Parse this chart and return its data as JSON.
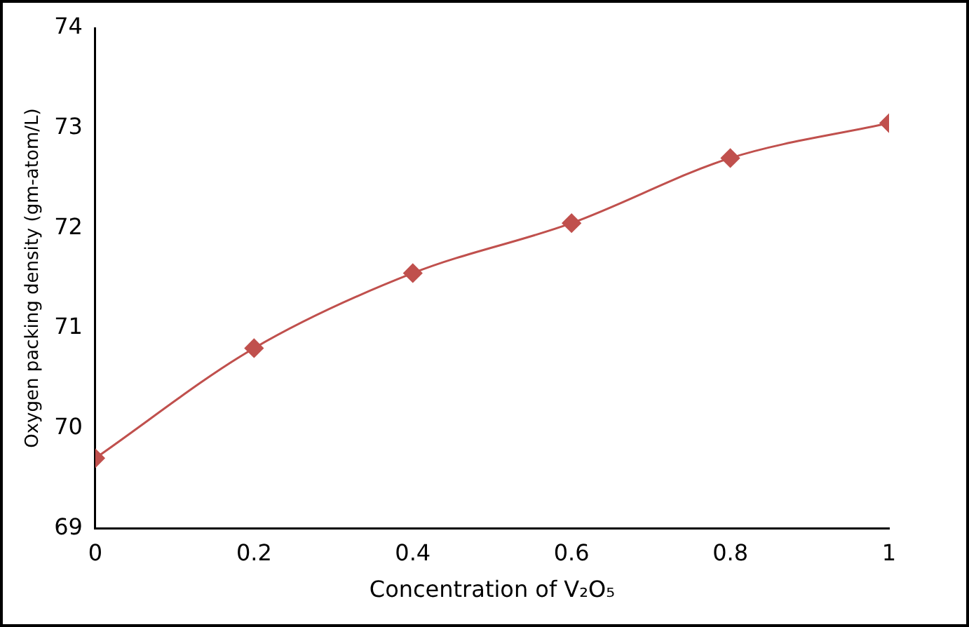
{
  "chart_data": {
    "type": "line",
    "xlabel": "Concentration of V₂O₅",
    "ylabel": "Oxygen packing density (gm-atom/L)",
    "x": [
      0,
      0.2,
      0.4,
      0.6,
      0.8,
      1
    ],
    "series": [
      {
        "color": "#c0504d",
        "values": [
          69.7,
          70.8,
          71.55,
          72.05,
          72.7,
          73.05
        ]
      }
    ],
    "xlim": [
      0,
      1
    ],
    "xticks": [
      0,
      0.2,
      0.4,
      0.6,
      0.8,
      1
    ],
    "ylim": [
      69,
      74
    ],
    "yticks": [
      69,
      70,
      71,
      72,
      73,
      74
    ],
    "grid": false,
    "legend": false,
    "marker": "diamond",
    "line_style": "solid"
  }
}
